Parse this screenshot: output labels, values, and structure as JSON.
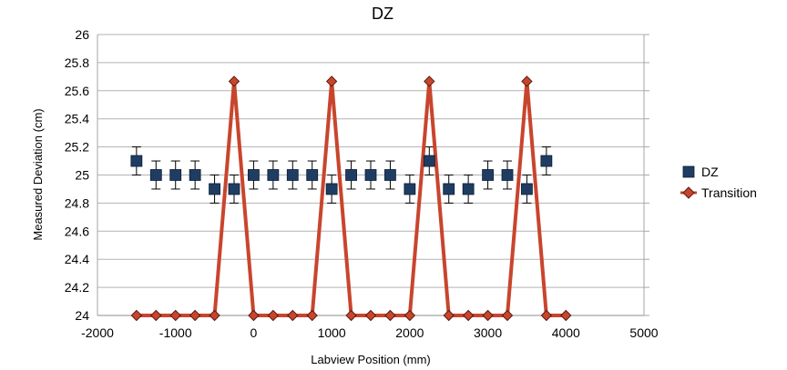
{
  "chart_data": {
    "type": "scatter",
    "title": "DZ",
    "xlabel": "Labview Position (mm)",
    "ylabel": "Measured Deviation (cm)",
    "xlim": [
      -2000,
      5000
    ],
    "ylim": [
      24,
      26
    ],
    "xticks": [
      -2000,
      -1000,
      0,
      1000,
      2000,
      3000,
      4000,
      5000
    ],
    "yticks": [
      24,
      24.2,
      24.4,
      24.6,
      24.8,
      25,
      25.2,
      25.4,
      25.6,
      25.8,
      26
    ],
    "ytick_labels": [
      "24",
      "24.2",
      "24.4",
      "24.6",
      "24.8",
      "25",
      "25.2",
      "25.4",
      "25.6",
      "25.8",
      "26"
    ],
    "grid": "horizontal",
    "legend_position": "right",
    "series": [
      {
        "name": "DZ",
        "marker": "square",
        "color": "#1f3d63",
        "error_bar": 0.1,
        "x": [
          -1500,
          -1250,
          -1000,
          -750,
          -500,
          -250,
          0,
          250,
          500,
          750,
          1000,
          1250,
          1500,
          1750,
          2000,
          2250,
          2500,
          2750,
          3000,
          3250,
          3500,
          3750
        ],
        "y": [
          25.1,
          25.0,
          25.0,
          25.0,
          24.9,
          24.9,
          25.0,
          25.0,
          25.0,
          25.0,
          24.9,
          25.0,
          25.0,
          25.0,
          24.9,
          25.1,
          24.9,
          24.9,
          25.0,
          25.0,
          24.9,
          25.1
        ]
      },
      {
        "name": "Transition",
        "marker": "diamond",
        "line": true,
        "color": "#c8452d",
        "x": [
          -1500,
          -1250,
          -1000,
          -750,
          -500,
          -250,
          0,
          250,
          500,
          750,
          1000,
          1250,
          1500,
          1750,
          2000,
          2250,
          2500,
          2750,
          3000,
          3250,
          3500,
          3750,
          4000
        ],
        "y": [
          24,
          24,
          24,
          24,
          24,
          25.667,
          24,
          24,
          24,
          24,
          25.667,
          24,
          24,
          24,
          24,
          25.667,
          24,
          24,
          24,
          24,
          25.667,
          24,
          24
        ]
      }
    ]
  }
}
